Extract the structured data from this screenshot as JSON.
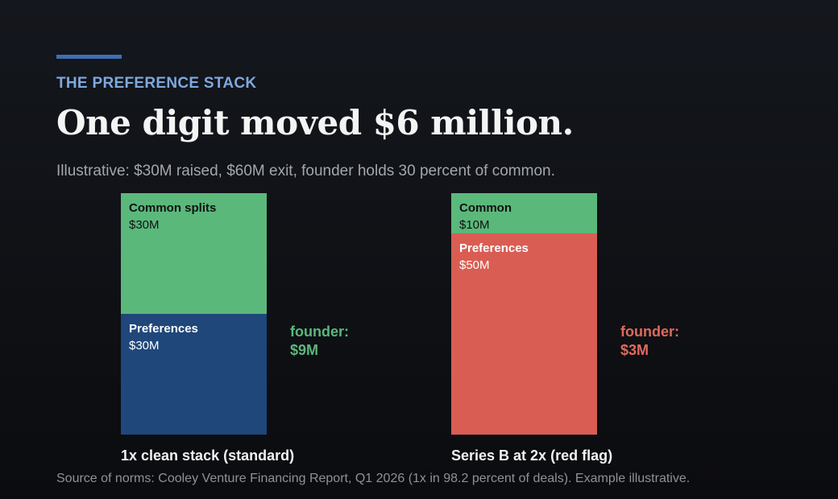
{
  "eyebrow": "THE PREFERENCE STACK",
  "headline": "One digit moved $6 million.",
  "subtitle": "Illustrative: $30M raised, $60M exit, founder holds 30 percent of common.",
  "source": "Source of norms: Cooley Venture Financing Report, Q1 2026 (1x in 98.2 percent of deals). Example illustrative.",
  "colors": {
    "common": "#5bb87b",
    "pref_standard": "#1f477a",
    "pref_redflag": "#d95d53",
    "founder_standard": "#5bb87b",
    "founder_redflag": "#e06a5e"
  },
  "chart_data": {
    "type": "bar",
    "stacked": true,
    "unit": "$M",
    "ylim": [
      0,
      60
    ],
    "categories": [
      "1x clean stack (standard)",
      "Series B at 2x (red flag)"
    ],
    "series": [
      {
        "name": "Preferences",
        "values": [
          30,
          50
        ],
        "value_labels": [
          "$30M",
          "$50M"
        ],
        "segment_labels": [
          "Preferences",
          "Preferences"
        ]
      },
      {
        "name": "Common",
        "values": [
          30,
          10
        ],
        "value_labels": [
          "$30M",
          "$10M"
        ],
        "segment_labels": [
          "Common splits",
          "Common"
        ]
      }
    ],
    "annotations": [
      {
        "label": "founder:",
        "value": 9,
        "value_label": "$9M"
      },
      {
        "label": "founder:",
        "value": 3,
        "value_label": "$3M"
      }
    ]
  }
}
